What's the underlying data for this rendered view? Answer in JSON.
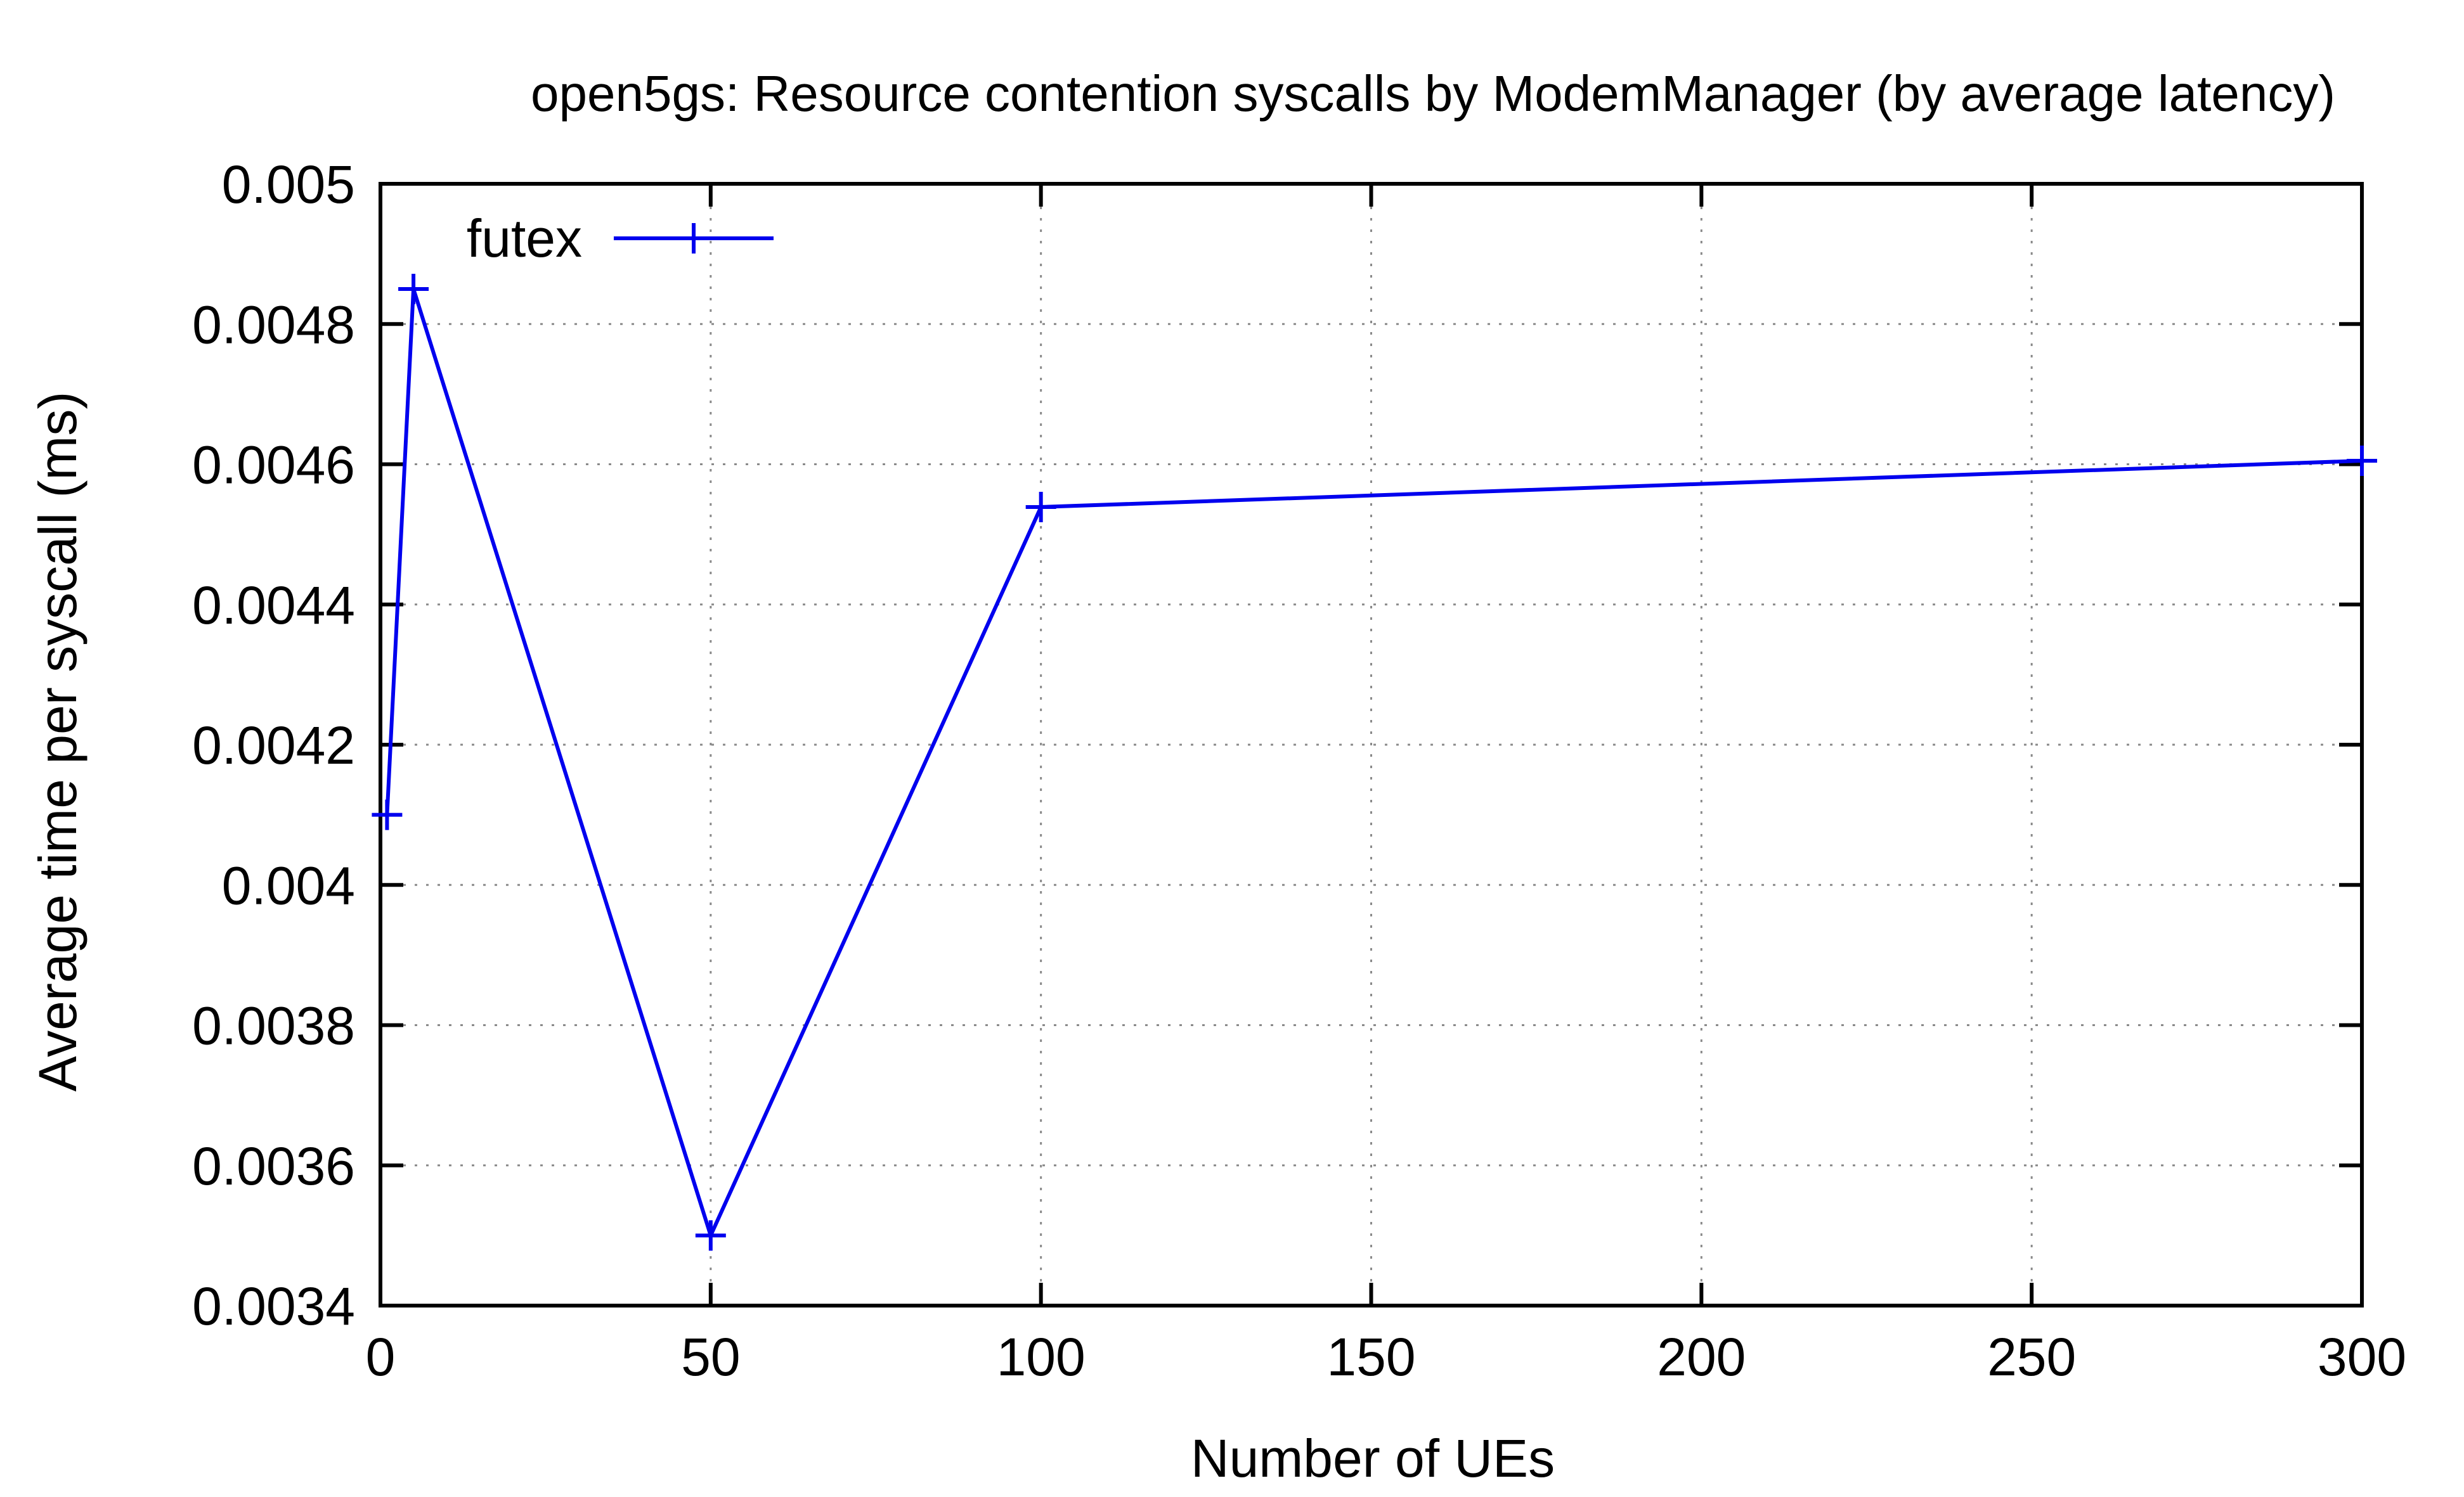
{
  "chart_data": {
    "type": "line",
    "title": "open5gs: Resource contention syscalls by ModemManager (by average latency)",
    "xlabel": "Number of UEs",
    "ylabel": "Average time per syscall (ms)",
    "xlim": [
      0,
      300
    ],
    "ylim": [
      0.0034,
      0.005
    ],
    "x_ticks": [
      0,
      50,
      100,
      150,
      200,
      250,
      300
    ],
    "x_tick_labels": [
      "0",
      "50",
      "100",
      "150",
      "200",
      "250",
      "300"
    ],
    "y_ticks": [
      0.0034,
      0.0036,
      0.0038,
      0.004,
      0.0042,
      0.0044,
      0.0046,
      0.0048,
      0.005
    ],
    "y_tick_labels": [
      "0.0034",
      "0.0036",
      "0.0038",
      "0.004",
      "0.0042",
      "0.0044",
      "0.0046",
      "0.0048",
      "0.005"
    ],
    "grid": true,
    "legend_position": "top-left",
    "series": [
      {
        "name": "futex",
        "color": "#0000ee",
        "marker": "plus",
        "x": [
          1,
          5,
          50,
          100,
          300
        ],
        "y": [
          0.0041,
          0.00485,
          0.0035,
          0.004539,
          0.004605
        ]
      }
    ]
  }
}
